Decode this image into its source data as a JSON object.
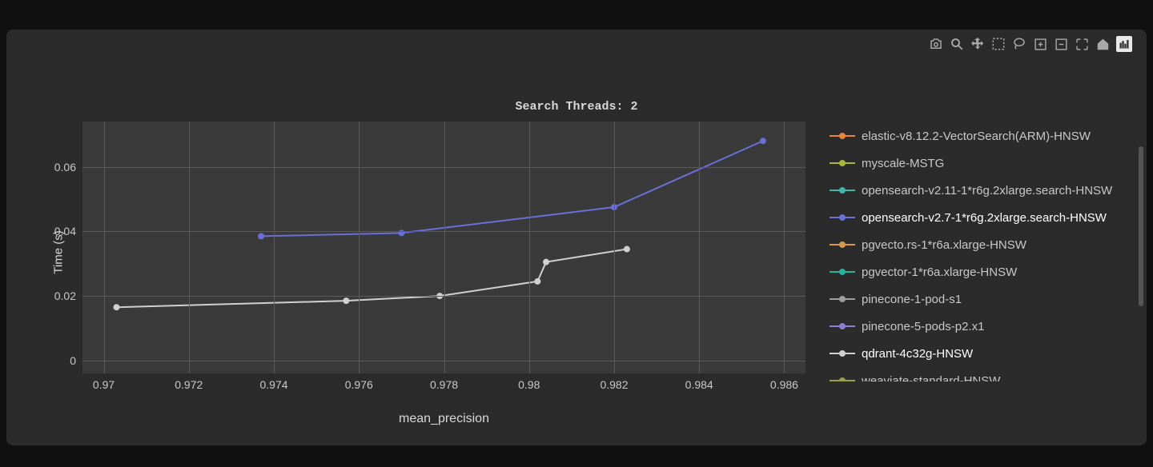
{
  "chart": {
    "title": "Search Threads: 2",
    "type": "line",
    "x_axis": {
      "title": "mean_precision",
      "min": 0.9695,
      "max": 0.9865,
      "ticks": [
        0.97,
        0.972,
        0.974,
        0.976,
        0.978,
        0.98,
        0.982,
        0.984,
        0.986
      ],
      "tick_labels": [
        "0.97",
        "0.972",
        "0.974",
        "0.976",
        "0.978",
        "0.98",
        "0.982",
        "0.984",
        "0.986"
      ]
    },
    "y_axis": {
      "title": "Time (s)",
      "min": -0.004,
      "max": 0.074,
      "ticks": [
        0,
        0.02,
        0.04,
        0.06
      ],
      "tick_labels": [
        "0",
        "0.02",
        "0.04",
        "0.06"
      ]
    },
    "plot_bg": "#3a3a3a",
    "grid_color": "#5a5a5a",
    "panel_bg": "#2b2b2b",
    "marker_size": 8,
    "line_width": 2,
    "series": [
      {
        "name": "elastic-v8.12.2-VectorSearch(ARM)-HNSW",
        "color": "#e8833a",
        "active": false,
        "points": []
      },
      {
        "name": "myscale-MSTG",
        "color": "#a6b73a",
        "active": false,
        "points": []
      },
      {
        "name": "opensearch-v2.11-1*r6g.2xlarge.search-HNSW",
        "color": "#3fb6a8",
        "active": false,
        "points": []
      },
      {
        "name": "opensearch-v2.7-1*r6g.2xlarge.search-HNSW",
        "color": "#6b6fd8",
        "active": true,
        "points": [
          {
            "x": 0.9737,
            "y": 0.0385
          },
          {
            "x": 0.977,
            "y": 0.0395
          },
          {
            "x": 0.982,
            "y": 0.0475
          },
          {
            "x": 0.9855,
            "y": 0.068
          }
        ]
      },
      {
        "name": "pgvecto.rs-1*r6a.xlarge-HNSW",
        "color": "#d89a4a",
        "active": false,
        "points": []
      },
      {
        "name": "pgvector-1*r6a.xlarge-HNSW",
        "color": "#24b39b",
        "active": false,
        "points": []
      },
      {
        "name": "pinecone-1-pod-s1",
        "color": "#9e9e9e",
        "active": false,
        "points": []
      },
      {
        "name": "pinecone-5-pods-p2.x1",
        "color": "#8a7fd0",
        "active": false,
        "points": []
      },
      {
        "name": "qdrant-4c32g-HNSW",
        "color": "#d0d0d0",
        "active": true,
        "points": [
          {
            "x": 0.9703,
            "y": 0.0165
          },
          {
            "x": 0.9757,
            "y": 0.0185
          },
          {
            "x": 0.9779,
            "y": 0.02
          },
          {
            "x": 0.9802,
            "y": 0.0245
          },
          {
            "x": 0.9804,
            "y": 0.0305
          },
          {
            "x": 0.9823,
            "y": 0.0345
          }
        ]
      },
      {
        "name": "weaviate-standard-HNSW",
        "color": "#9aa048",
        "active": false,
        "points": []
      }
    ]
  },
  "toolbar": {
    "icons": [
      "camera-icon",
      "zoom-icon",
      "pan-icon",
      "box-select-icon",
      "lasso-icon",
      "zoom-in-icon",
      "zoom-out-icon",
      "autoscale-icon",
      "home-icon",
      "brand-icon"
    ]
  }
}
